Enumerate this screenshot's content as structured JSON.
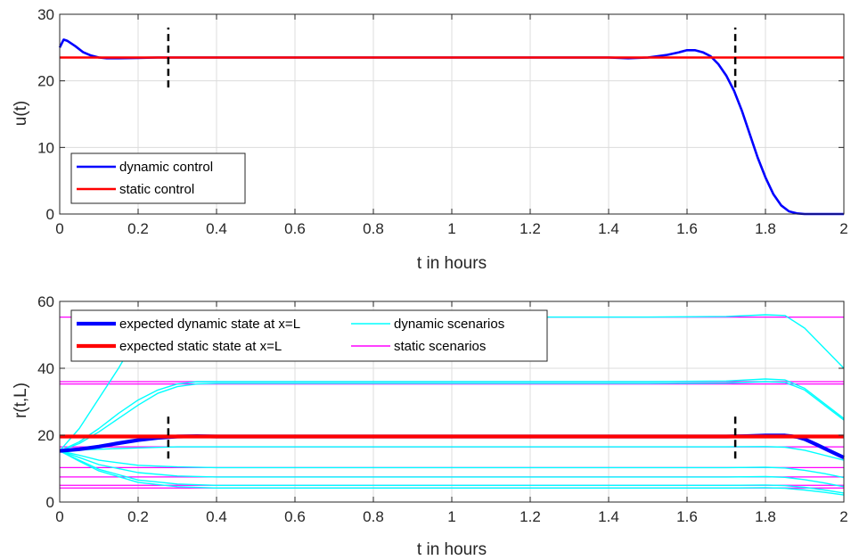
{
  "chart_data": [
    {
      "type": "line",
      "xlabel": "t in hours",
      "ylabel": "u(t)",
      "xlim": [
        0,
        2
      ],
      "ylim": [
        0,
        30
      ],
      "xticks": [
        0,
        0.2,
        0.4,
        0.6,
        0.8,
        1,
        1.2,
        1.4,
        1.6,
        1.8,
        2
      ],
      "xtick_labels": [
        "0",
        "0.2",
        "0.4",
        "0.6",
        "0.8",
        "1",
        "1.2",
        "1.4",
        "1.6",
        "1.8",
        "2"
      ],
      "yticks": [
        0,
        10,
        20,
        30
      ],
      "ytick_labels": [
        "0",
        "10",
        "20",
        "30"
      ],
      "grid": true,
      "legend_position": "bottom-left",
      "series": [
        {
          "name": "dynamic control",
          "color": "#0000ff",
          "x": [
            0,
            0.01,
            0.02,
            0.04,
            0.06,
            0.08,
            0.1,
            0.12,
            0.15,
            0.2,
            0.25,
            0.3,
            0.5,
            0.8,
            1.0,
            1.2,
            1.4,
            1.45,
            1.5,
            1.55,
            1.58,
            1.6,
            1.62,
            1.64,
            1.66,
            1.68,
            1.7,
            1.72,
            1.74,
            1.76,
            1.78,
            1.8,
            1.82,
            1.84,
            1.86,
            1.88,
            1.9,
            1.95,
            2.0
          ],
          "y": [
            25.0,
            26.2,
            26.0,
            25.2,
            24.3,
            23.8,
            23.5,
            23.4,
            23.4,
            23.45,
            23.5,
            23.5,
            23.5,
            23.5,
            23.5,
            23.5,
            23.5,
            23.4,
            23.5,
            23.9,
            24.3,
            24.6,
            24.6,
            24.3,
            23.7,
            22.5,
            20.8,
            18.5,
            15.5,
            12.0,
            8.5,
            5.5,
            3.0,
            1.3,
            0.4,
            0.1,
            0.0,
            0.0,
            0.0
          ]
        },
        {
          "name": "static control",
          "color": "#ff0000",
          "x": [
            0,
            2
          ],
          "y": [
            23.5,
            23.5
          ]
        }
      ],
      "markers": [
        {
          "x": 0.277,
          "y_range": [
            19,
            28
          ],
          "color": "#000000",
          "style": "dashed"
        },
        {
          "x": 1.723,
          "y_range": [
            19,
            28
          ],
          "color": "#000000",
          "style": "dashed"
        }
      ]
    },
    {
      "type": "line",
      "xlabel": "t in hours",
      "ylabel": "r(t,L)",
      "xlim": [
        0,
        2
      ],
      "ylim": [
        0,
        60
      ],
      "xticks": [
        0,
        0.2,
        0.4,
        0.6,
        0.8,
        1,
        1.2,
        1.4,
        1.6,
        1.8,
        2
      ],
      "xtick_labels": [
        "0",
        "0.2",
        "0.4",
        "0.6",
        "0.8",
        "1",
        "1.2",
        "1.4",
        "1.6",
        "1.8",
        "2"
      ],
      "yticks": [
        0,
        20,
        40,
        60
      ],
      "ytick_labels": [
        "0",
        "20",
        "40",
        "60"
      ],
      "grid": true,
      "legend_position": "top-left",
      "legend_columns": 2,
      "series": [
        {
          "name": "expected dynamic state at x=L",
          "color": "#0000ff",
          "x": [
            0,
            0.05,
            0.1,
            0.15,
            0.2,
            0.25,
            0.3,
            0.35,
            0.4,
            0.6,
            1.0,
            1.4,
            1.7,
            1.75,
            1.8,
            1.85,
            1.88,
            1.9,
            1.93,
            1.96,
            2.0
          ],
          "y": [
            15.3,
            15.8,
            16.6,
            17.6,
            18.5,
            19.2,
            19.6,
            19.7,
            19.6,
            19.6,
            19.6,
            19.6,
            19.6,
            19.7,
            19.9,
            19.9,
            19.5,
            18.8,
            17.2,
            15.5,
            13.3
          ]
        },
        {
          "name": "expected static state at x=L",
          "color": "#ff0000",
          "x": [
            0,
            2
          ],
          "y": [
            19.6,
            19.6
          ]
        },
        {
          "name": "dynamic scenarios",
          "color": "#00ffff",
          "x": [
            0,
            0.05,
            0.1,
            0.15,
            0.2,
            0.25,
            0.3,
            0.35,
            0.4,
            0.6,
            1.0,
            1.4,
            1.7,
            1.75,
            1.8,
            1.85,
            1.88,
            1.9,
            1.93,
            1.96,
            2.0
          ],
          "y": [
            15.3,
            15.8,
            16.6,
            17.6,
            18.5,
            19.2,
            19.6,
            19.7,
            19.6,
            19.6,
            19.6,
            19.6,
            19.6,
            19.7,
            19.9,
            19.9,
            19.5,
            18.8,
            17.2,
            15.5,
            13.3
          ]
        },
        {
          "name": "static scenarios",
          "color": "#ff00ff",
          "x": [
            0,
            2
          ],
          "y": [
            55.3,
            55.3
          ]
        }
      ],
      "extra_dynamic_scenarios": [
        {
          "x": [
            0,
            0.05,
            0.1,
            0.15,
            0.18,
            0.2,
            0.25,
            0.3,
            0.4,
            1.0,
            1.5,
            1.7,
            1.8,
            1.85,
            1.9,
            1.95,
            2.0
          ],
          "y": [
            15.3,
            22,
            31,
            40,
            46,
            50,
            55,
            55.3,
            55.3,
            55.3,
            55.3,
            55.5,
            56,
            55.8,
            52,
            46,
            40
          ]
        },
        {
          "x": [
            0,
            0.05,
            0.1,
            0.15,
            0.2,
            0.25,
            0.3,
            0.35,
            0.4,
            1.0,
            1.5,
            1.7,
            1.8,
            1.85,
            1.9,
            1.95,
            2.0
          ],
          "y": [
            15.3,
            18,
            22,
            26.5,
            30.5,
            33.5,
            35.3,
            36,
            36,
            36,
            36,
            36.2,
            36.8,
            36.5,
            34,
            29.5,
            25
          ]
        },
        {
          "x": [
            0,
            0.05,
            0.1,
            0.15,
            0.2,
            0.25,
            0.3,
            0.35,
            0.4,
            1.0,
            1.5,
            1.7,
            1.8,
            1.85,
            1.9,
            1.95,
            2.0
          ],
          "y": [
            15.3,
            17.5,
            21,
            25,
            29,
            32.5,
            34.5,
            35.3,
            35.5,
            35.5,
            35.5,
            35.6,
            36,
            35.8,
            33.5,
            29,
            24.5
          ]
        },
        {
          "x": [
            0,
            0.1,
            0.2,
            0.3,
            0.4,
            1.0,
            1.7,
            1.8,
            1.85,
            1.9,
            1.95,
            2.0
          ],
          "y": [
            15.3,
            15.8,
            16.2,
            16.5,
            16.5,
            16.5,
            16.5,
            16.6,
            16.4,
            15.5,
            14,
            12.5
          ]
        },
        {
          "x": [
            0,
            0.05,
            0.1,
            0.2,
            0.3,
            0.4,
            1.0,
            1.7,
            1.8,
            1.85,
            1.9,
            1.95,
            2.0
          ],
          "y": [
            15.3,
            14,
            12.5,
            11,
            10.5,
            10.3,
            10.3,
            10.3,
            10.4,
            10.2,
            9.5,
            8.5,
            7.3
          ]
        },
        {
          "x": [
            0,
            0.05,
            0.1,
            0.2,
            0.3,
            0.4,
            1.0,
            1.7,
            1.8,
            1.85,
            1.9,
            1.95,
            2.0
          ],
          "y": [
            15.3,
            13.3,
            11.2,
            8.8,
            7.8,
            7.5,
            7.5,
            7.5,
            7.6,
            7.4,
            6.7,
            5.7,
            4.6
          ]
        },
        {
          "x": [
            0,
            0.05,
            0.1,
            0.2,
            0.3,
            0.4,
            1.0,
            1.7,
            1.8,
            1.85,
            1.9,
            1.95,
            2.0
          ],
          "y": [
            15.3,
            12.5,
            9.8,
            6.6,
            5.4,
            5.0,
            5.0,
            5.0,
            5.1,
            4.9,
            4.4,
            3.6,
            2.7
          ]
        },
        {
          "x": [
            0,
            0.05,
            0.1,
            0.2,
            0.3,
            0.4,
            1.0,
            1.7,
            1.8,
            1.85,
            1.9,
            1.95,
            2.0
          ],
          "y": [
            15.3,
            12.2,
            9.3,
            5.9,
            4.6,
            4.2,
            4.2,
            4.2,
            4.3,
            4.1,
            3.6,
            2.9,
            2.1
          ]
        }
      ],
      "extra_static_scenarios": [
        36.0,
        35.3,
        16.5,
        10.3,
        7.5,
        5.0,
        4.2
      ],
      "markers": [
        {
          "x": 0.277,
          "y_range": [
            13,
            26
          ],
          "color": "#000000",
          "style": "dashed"
        },
        {
          "x": 1.723,
          "y_range": [
            13,
            26
          ],
          "color": "#000000",
          "style": "dashed"
        }
      ]
    }
  ]
}
